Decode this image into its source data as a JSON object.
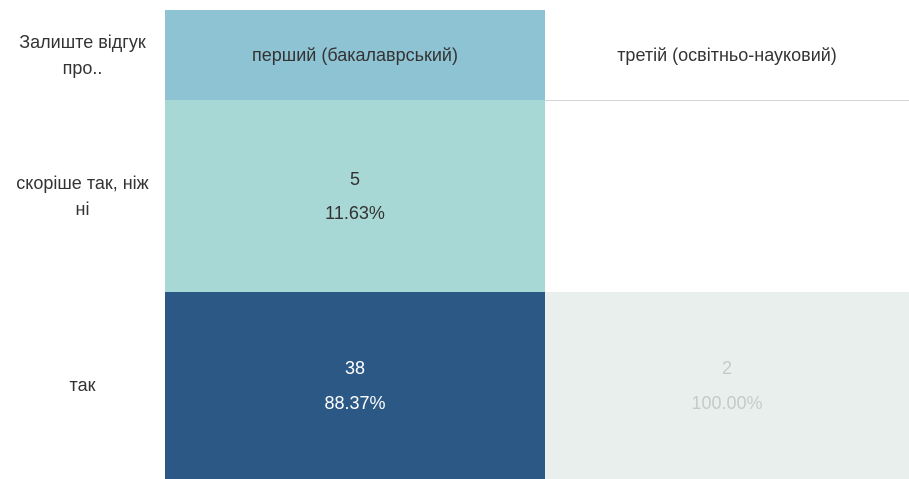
{
  "table": {
    "corner": "Залиште відгук про..",
    "columns": [
      "перший (бакалаврський)",
      "третій (освітньо-науковий)"
    ],
    "header_colors": [
      "#8ec3d3",
      "#ffffff"
    ],
    "rows": [
      {
        "label": "скоріше так, ніж ні",
        "cells": [
          {
            "count": "5",
            "percent": "11.63%",
            "color": "#a8d8d5",
            "text_color": "#333333"
          },
          null
        ]
      },
      {
        "label": "так",
        "cells": [
          {
            "count": "38",
            "percent": "88.37%",
            "color": "#2c5886",
            "text_color": "#ffffff"
          },
          {
            "count": "2",
            "percent": "100.00%",
            "color": "#e8efed",
            "text_color": "#c4cccb"
          }
        ]
      }
    ]
  }
}
